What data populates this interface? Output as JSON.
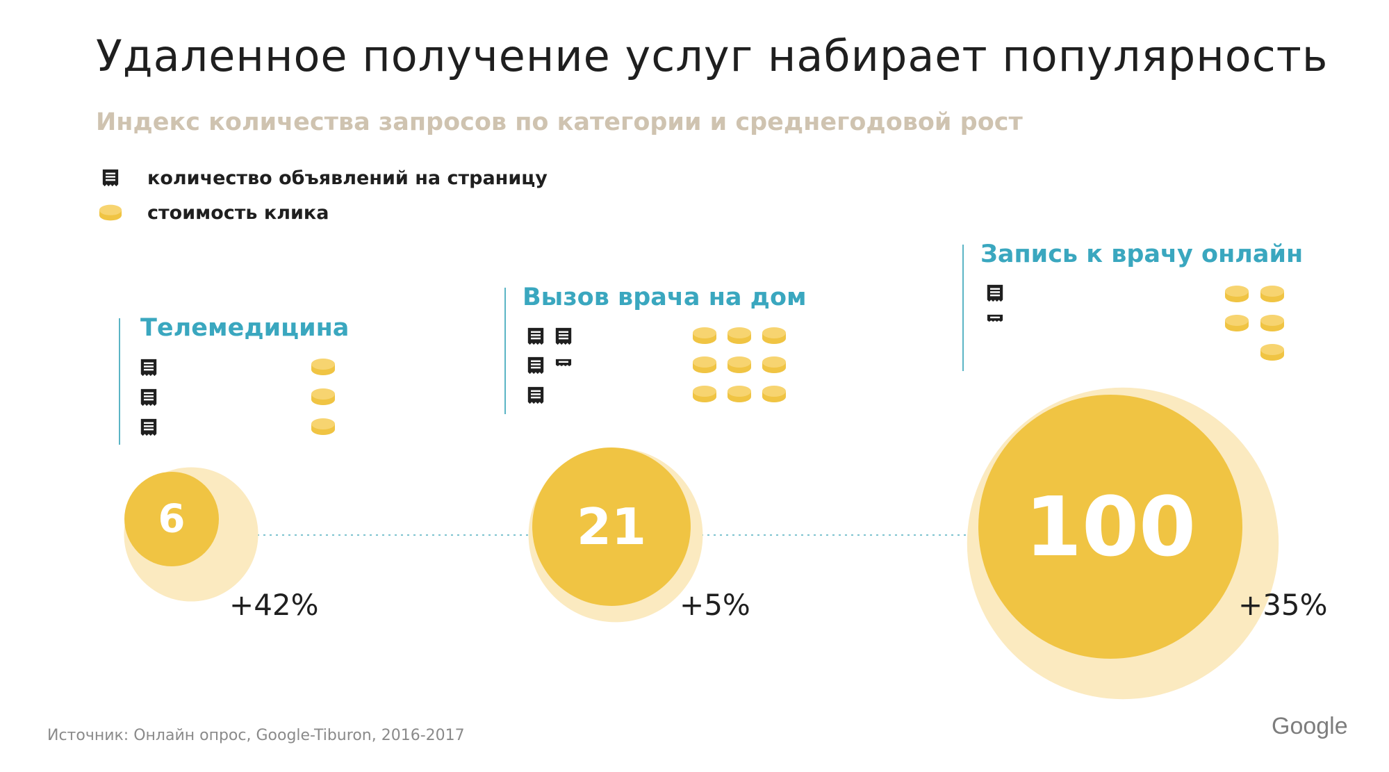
{
  "title": "Удаленное получение услуг набирает популярность",
  "subtitle": "Индекс количества запросов по категории и среднегодовой рост",
  "legend": {
    "ads_label": "количество объявлений на страницу",
    "cpc_label": "стоимость клика",
    "ads_icon": "ad-page-icon",
    "cpc_icon": "coin-icon"
  },
  "colors": {
    "bubble": "#f0c443",
    "bubble_halo": "#fbeac0",
    "accent": "#3aa7bf",
    "icon_dark": "#1f1f1f",
    "coin": "#f0c443"
  },
  "chart_data": {
    "type": "bubble",
    "title": "Удаленное получение услуг набирает популярность",
    "subtitle": "Индекс количества запросов по категории и среднегодовой рост",
    "series": [
      {
        "name": "Телемедицина",
        "index": 6,
        "growth_label": "+42%",
        "growth": 42,
        "ads_per_page": 3,
        "cost_per_click": 3
      },
      {
        "name": "Вызов врача на дом",
        "index": 21,
        "growth_label": "+5%",
        "growth": 5,
        "ads_per_page": 4.5,
        "cost_per_click": 9
      },
      {
        "name": "Запись к врачу онлайн",
        "index": 100,
        "growth_label": "+35%",
        "growth": 35,
        "ads_per_page": 1.5,
        "cost_per_click": 5
      }
    ]
  },
  "footer": {
    "source": "Источник: Онлайн опрос, Google-Tiburon, 2016-2017",
    "logo": "Google"
  }
}
